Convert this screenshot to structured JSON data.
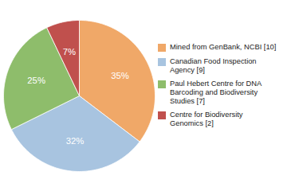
{
  "chart_data": {
    "type": "pie",
    "categories": [
      "Mined from GenBank, NCBI [10]",
      "Canadian Food Inspection\nAgency [9]",
      "Paul Hebert Centre for DNA\nBarcoding and Biodiversity\nStudies [7]",
      "Centre for Biodiversity\nGenomics [2]"
    ],
    "values": [
      35,
      32,
      25,
      7
    ],
    "value_labels": [
      "35%",
      "32%",
      "25%",
      "7%"
    ],
    "data_labels": true,
    "colors": [
      "#F0A868",
      "#A8C4E0",
      "#8EBD6B",
      "#C0504D"
    ],
    "legend": "right"
  }
}
